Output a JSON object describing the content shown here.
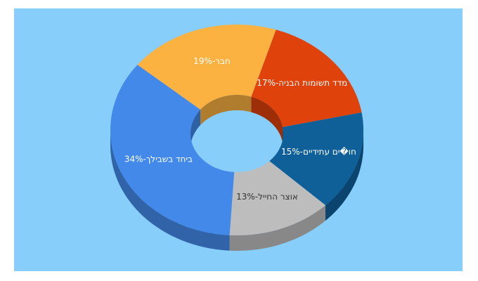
{
  "chart_data": {
    "type": "donut3d",
    "categories": [
      "מדד תשומות הבניה",
      "חו�ים עתידיים",
      "אוצר החייל",
      "ביחד בשבילך",
      "חבר"
    ],
    "values": [
      17,
      15,
      13,
      34,
      19
    ],
    "value_labels": [
      "מדד תשומות הבניה-17%",
      "חו�ים עתידיים-15%",
      "אוצר החייל-13%",
      "ביחד בשבילך-34%",
      "חבר-19%"
    ],
    "colors": [
      "#e0420b",
      "#0f5f99",
      "#bdbdbd",
      "#4289ea",
      "#fbb241"
    ]
  }
}
